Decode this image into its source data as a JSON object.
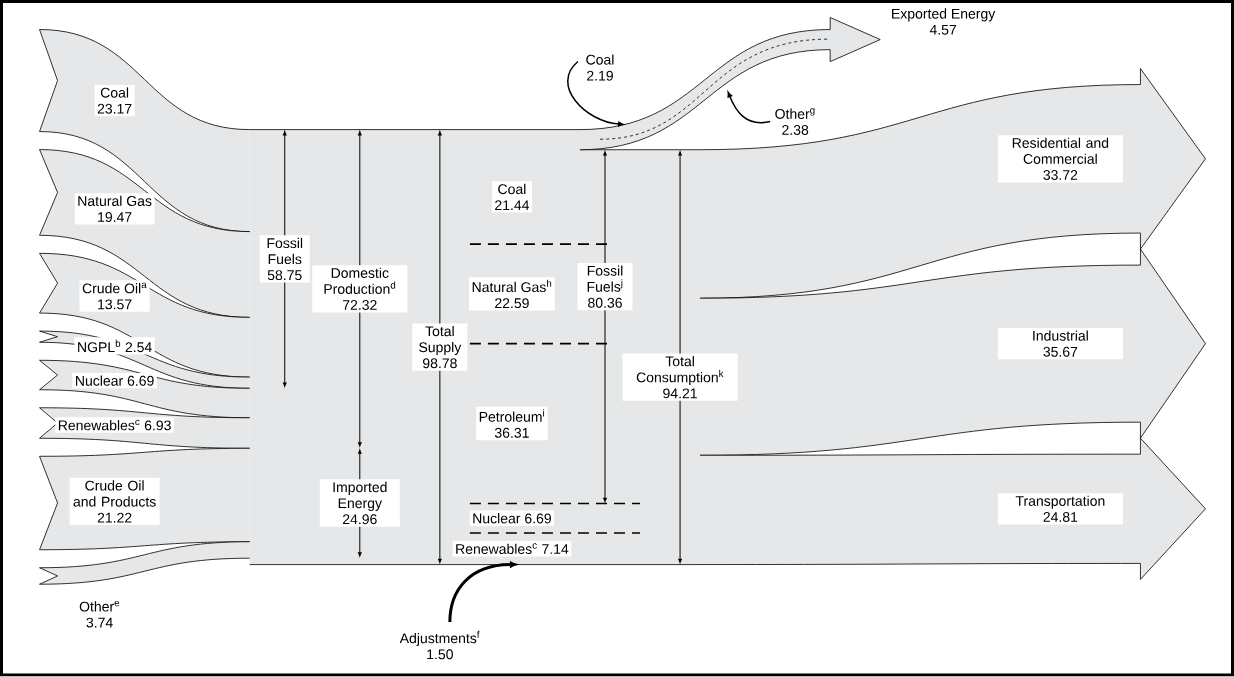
{
  "chart_data": {
    "type": "other",
    "categories": [
      "Coal",
      "Natural Gas",
      "Crude Oil$^{a}$",
      "NGPL$^{b}$",
      "Nuclear",
      "Renewables$^{c}$",
      "Crude Oil and Products",
      "Other$^{e}$",
      "Adjustments$^{f}$",
      "Fossil Fuels",
      "Domestic Production$^{d}$",
      "Imported Energy",
      "Total Supply",
      "Exported Energy",
      "Coal",
      "Other$^{g}$",
      "Coal",
      "Natural Gas$^{h}$",
      "Petroleum$^{i}$",
      "Nuclear",
      "Renewables$^{c}$",
      "Fossil Fuels$^{j}$",
      "Total Consumption$^{k}$",
      "Residential and Commercial",
      "Industrial",
      "Transportation"
    ],
    "values": [
      23.17,
      19.47,
      13.57,
      2.54,
      6.69,
      6.93,
      21.22,
      3.74,
      1.5,
      58.75,
      72.32,
      24.96,
      98.78,
      4.57,
      2.19,
      2.38,
      21.44,
      22.59,
      36.31,
      6.69,
      7.14,
      80.36,
      94.21,
      33.72,
      35.67,
      24.81
    ],
    "value_labels": [
      "23.17",
      "19.47",
      "13.57",
      "2.54",
      "6.69",
      "6.93",
      "21.22",
      "3.74",
      "1.50",
      "58.75",
      "72.32",
      "24.96",
      "98.78",
      "4.57",
      "2.19",
      "2.38",
      "21.44",
      "22.59",
      "36.31",
      "6.69",
      "7.14",
      "80.36",
      "94.21",
      "33.72",
      "35.67",
      "24.81"
    ]
  }
}
